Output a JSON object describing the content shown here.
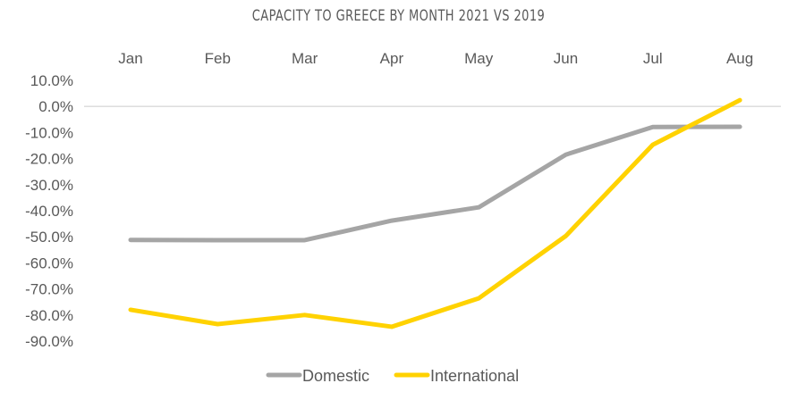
{
  "chart_data": {
    "type": "line",
    "title": "CAPACITY TO GREECE BY MONTH 2021 VS 2019",
    "xlabel": "",
    "ylabel": "",
    "categories": [
      "Jan",
      "Feb",
      "Mar",
      "Apr",
      "May",
      "Jun",
      "Jul",
      "Aug"
    ],
    "ylim": [
      -90,
      10
    ],
    "yticks": [
      "10.0%",
      "0.0%",
      "-10.0%",
      "-20.0%",
      "-30.0%",
      "-40.0%",
      "-50.0%",
      "-60.0%",
      "-70.0%",
      "-80.0%",
      "-90.0%"
    ],
    "ytick_values": [
      10,
      0,
      -10,
      -20,
      -30,
      -40,
      -50,
      -60,
      -70,
      -80,
      -90
    ],
    "grid": false,
    "x_axis_position": "top",
    "legend_position": "bottom",
    "series": [
      {
        "name": "Domestic",
        "color": "#A5A5A5",
        "values": [
          -51.2,
          -51.3,
          -51.3,
          -43.8,
          -38.7,
          -18.5,
          -7.9,
          -7.8
        ]
      },
      {
        "name": "International",
        "color": "#FFD200",
        "values": [
          -78.0,
          -83.5,
          -80.0,
          -84.5,
          -73.6,
          -49.7,
          -14.7,
          2.4
        ]
      }
    ]
  }
}
